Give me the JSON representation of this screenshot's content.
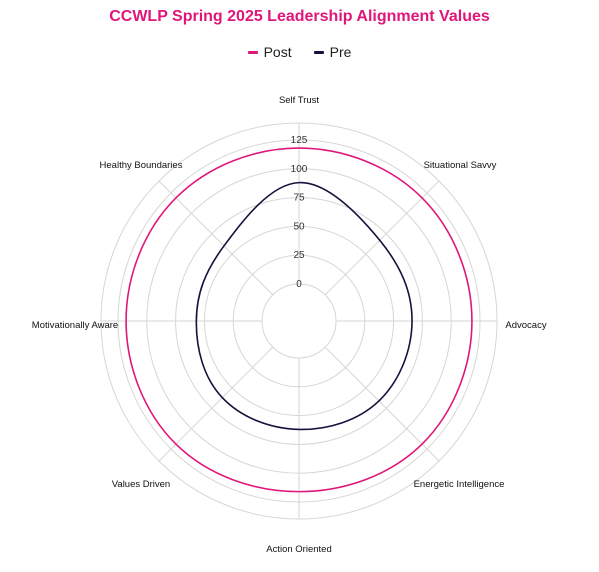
{
  "chart_data": {
    "type": "radar",
    "title": "CCWLP Spring 2025 Leadership Alignment Values",
    "categories": [
      "Self Trust",
      "Situational Savvy",
      "Advocacy",
      "Energetic Intelligence",
      "Action Oriented",
      "Values Driven",
      "Motivationally Aware",
      "Healthy Boundaries"
    ],
    "series": [
      {
        "name": "Post",
        "color": "#e0167a",
        "values": [
          118,
          119,
          118,
          119,
          116,
          119,
          118,
          119
        ]
      },
      {
        "name": "Pre",
        "color": "#14123d",
        "values": [
          88,
          67,
          66,
          66,
          62,
          62,
          57,
          60
        ]
      }
    ],
    "ticks": [
      0,
      25,
      50,
      75,
      100,
      125
    ],
    "rlim": [
      0,
      125
    ],
    "legend": "top",
    "grid": true
  }
}
